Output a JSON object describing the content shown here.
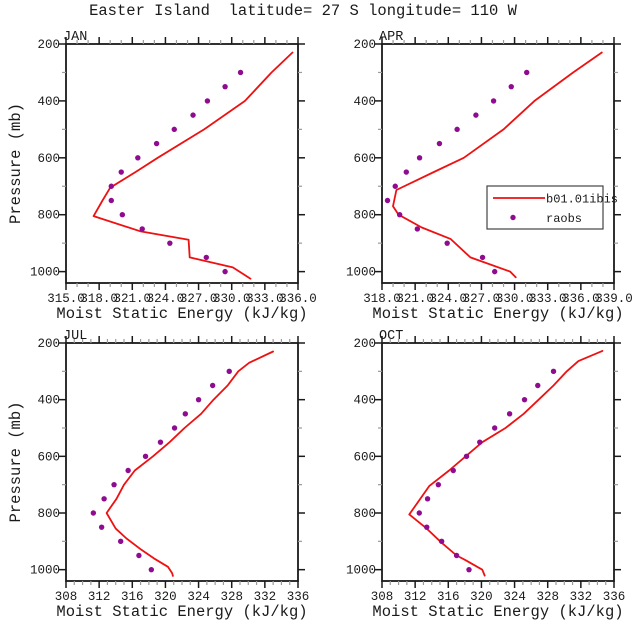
{
  "title": "Easter Island  latitude= 27 S longitude= 110 W",
  "legend": {
    "line_label": "b01.01ibis",
    "dot_label": "raobs"
  },
  "colors": {
    "line": "#ee1111",
    "dots": "#8f0b8f",
    "axis": "#1a1a1a",
    "minor_tick": "#9a9a9a",
    "text": "#1a1a1a"
  },
  "chart_data": [
    {
      "type": "line",
      "title": "JAN",
      "xlabel": "Moist Static Energy (kJ/kg)",
      "ylabel": "Pressure (mb)",
      "xlim": [
        315,
        336
      ],
      "xtick_values": [
        315,
        318,
        321,
        324,
        327,
        330,
        333,
        336
      ],
      "xtick_labels": [
        "315.0",
        "318.0",
        "321.0",
        "324.0",
        "327.0",
        "330.0",
        "333.0",
        "336.0"
      ],
      "x_minor_step": 1,
      "ylim": [
        200,
        1040
      ],
      "ytick_values": [
        200,
        400,
        600,
        800,
        1000
      ],
      "y_minor_step": 100,
      "legend": false,
      "series": [
        {
          "name": "b01.01ibis",
          "type": "line",
          "points": [
            [
              230,
              335.5
            ],
            [
              300,
              333.6
            ],
            [
              400,
              331.2
            ],
            [
              500,
              327.5
            ],
            [
              600,
              323.3
            ],
            [
              650,
              321.3
            ],
            [
              705,
              319.0
            ],
            [
              750,
              318.3
            ],
            [
              805,
              317.5
            ],
            [
              858,
              321.7
            ],
            [
              888,
              326.1
            ],
            [
              950,
              326.2
            ],
            [
              985,
              330.1
            ],
            [
              1015,
              331.3
            ],
            [
              1025,
              331.7
            ]
          ]
        },
        {
          "name": "raobs",
          "type": "scatter",
          "pressure": [
            300,
            350,
            400,
            450,
            500,
            550,
            600,
            650,
            700,
            750,
            800,
            850,
            900,
            950,
            1000
          ],
          "values": [
            330.8,
            329.4,
            327.8,
            326.5,
            324.8,
            323.2,
            321.5,
            320.0,
            319.1,
            319.1,
            320.1,
            321.9,
            324.4,
            327.7,
            329.4
          ]
        }
      ]
    },
    {
      "type": "line",
      "title": "APR",
      "xlabel": "Moist Static Energy (kJ/kg)",
      "ylabel": "",
      "xlim": [
        318,
        339
      ],
      "xtick_values": [
        318,
        321,
        324,
        327,
        330,
        333,
        336,
        339
      ],
      "xtick_labels": [
        "318.0",
        "321.0",
        "324.0",
        "327.0",
        "330.0",
        "333.0",
        "336.0",
        "339.0"
      ],
      "x_minor_step": 1,
      "ylim": [
        200,
        1040
      ],
      "ytick_values": [
        200,
        400,
        600,
        800,
        1000
      ],
      "y_minor_step": 100,
      "legend": true,
      "series": [
        {
          "name": "b01.01ibis",
          "type": "line",
          "points": [
            [
              230,
              337.9
            ],
            [
              300,
              335.3
            ],
            [
              400,
              331.8
            ],
            [
              500,
              329.0
            ],
            [
              600,
              325.4
            ],
            [
              650,
              322.7
            ],
            [
              713,
              319.3
            ],
            [
              750,
              319.1
            ],
            [
              770,
              319.0
            ],
            [
              800,
              319.5
            ],
            [
              845,
              321.6
            ],
            [
              885,
              324.2
            ],
            [
              950,
              326.0
            ],
            [
              1000,
              329.6
            ],
            [
              1020,
              330.1
            ]
          ]
        },
        {
          "name": "raobs",
          "type": "scatter",
          "pressure": [
            300,
            350,
            400,
            450,
            500,
            550,
            600,
            650,
            700,
            750,
            800,
            850,
            900,
            950,
            1000
          ],
          "values": [
            331.1,
            329.7,
            328.1,
            326.5,
            324.8,
            323.2,
            321.4,
            320.2,
            319.2,
            318.5,
            319.6,
            321.2,
            323.9,
            327.1,
            328.2
          ]
        }
      ]
    },
    {
      "type": "line",
      "title": "JUL",
      "xlabel": "Moist Static Energy (kJ/kg)",
      "ylabel": "Pressure (mb)",
      "xlim": [
        308,
        336
      ],
      "xtick_values": [
        308,
        312,
        316,
        320,
        324,
        328,
        332,
        336
      ],
      "xtick_labels": [
        "308",
        "312",
        "316",
        "320",
        "324",
        "328",
        "332",
        "336"
      ],
      "x_minor_step": 1,
      "ylim": [
        200,
        1040
      ],
      "ytick_values": [
        200,
        400,
        600,
        800,
        1000
      ],
      "y_minor_step": 100,
      "legend": false,
      "series": [
        {
          "name": "b01.01ibis",
          "type": "line",
          "points": [
            [
              230,
              333.0
            ],
            [
              270,
              330.1
            ],
            [
              300,
              328.8
            ],
            [
              350,
              327.5
            ],
            [
              400,
              325.8
            ],
            [
              450,
              324.3
            ],
            [
              500,
              322.3
            ],
            [
              550,
              320.5
            ],
            [
              600,
              318.5
            ],
            [
              650,
              316.3
            ],
            [
              700,
              315.0
            ],
            [
              750,
              314.1
            ],
            [
              800,
              312.9
            ],
            [
              855,
              314.0
            ],
            [
              890,
              315.3
            ],
            [
              930,
              317.1
            ],
            [
              960,
              318.6
            ],
            [
              990,
              320.3
            ],
            [
              1012,
              320.8
            ],
            [
              1022,
              320.9
            ]
          ]
        },
        {
          "name": "raobs",
          "type": "scatter",
          "pressure": [
            300,
            350,
            400,
            450,
            500,
            550,
            600,
            650,
            700,
            750,
            800,
            850,
            900,
            950,
            1000
          ],
          "values": [
            327.7,
            325.7,
            324.0,
            322.4,
            321.1,
            319.4,
            317.6,
            315.5,
            313.8,
            312.6,
            311.3,
            312.3,
            314.6,
            316.8,
            318.3
          ]
        }
      ]
    },
    {
      "type": "line",
      "title": "OCT",
      "xlabel": "Moist Static Energy (kJ/kg)",
      "ylabel": "",
      "xlim": [
        308,
        336
      ],
      "xtick_values": [
        308,
        312,
        316,
        320,
        324,
        328,
        332,
        336
      ],
      "xtick_labels": [
        "308",
        "312",
        "316",
        "320",
        "324",
        "328",
        "332",
        "336"
      ],
      "x_minor_step": 1,
      "ylim": [
        200,
        1040
      ],
      "ytick_values": [
        200,
        400,
        600,
        800,
        1000
      ],
      "y_minor_step": 100,
      "legend": false,
      "series": [
        {
          "name": "b01.01ibis",
          "type": "line",
          "points": [
            [
              228,
              334.6
            ],
            [
              264,
              331.7
            ],
            [
              300,
              330.3
            ],
            [
              350,
              328.7
            ],
            [
              400,
              326.9
            ],
            [
              450,
              325.1
            ],
            [
              500,
              322.9
            ],
            [
              550,
              320.1
            ],
            [
              600,
              318.1
            ],
            [
              650,
              316.1
            ],
            [
              705,
              313.7
            ],
            [
              805,
              311.3
            ],
            [
              855,
              313.4
            ],
            [
              905,
              315.2
            ],
            [
              950,
              317.0
            ],
            [
              965,
              318.0
            ],
            [
              1000,
              320.1
            ],
            [
              1021,
              320.4
            ]
          ]
        },
        {
          "name": "raobs",
          "type": "scatter",
          "pressure": [
            300,
            350,
            400,
            450,
            500,
            550,
            600,
            650,
            700,
            750,
            800,
            850,
            900,
            950,
            1000
          ],
          "values": [
            328.7,
            326.8,
            325.2,
            323.4,
            321.6,
            319.8,
            318.2,
            316.6,
            314.8,
            313.5,
            312.5,
            313.4,
            315.2,
            317.0,
            318.5
          ]
        }
      ]
    }
  ]
}
